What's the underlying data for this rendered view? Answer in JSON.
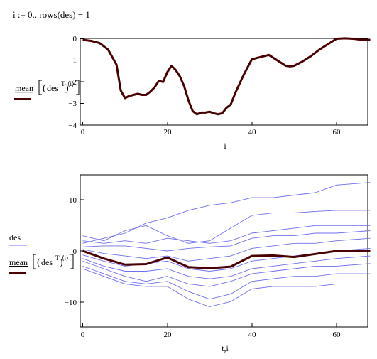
{
  "definition": {
    "text": "i := 0.. rows(des) − 1"
  },
  "chart_data": [
    {
      "type": "line",
      "title": "",
      "xlabel": "i",
      "ylabel": {
        "func": "mean",
        "arg": "des",
        "sup": "T",
        "sub": "⟨i⟩"
      },
      "xlim": [
        0,
        68
      ],
      "ylim": [
        -4,
        0
      ],
      "xticks": [
        "0",
        "20",
        "40",
        "60"
      ],
      "yticks": [
        "0",
        "−1",
        "−2",
        "−3",
        "−4"
      ],
      "grid": false,
      "series": [
        {
          "color": "#4a0000",
          "x": [
            0,
            2,
            4,
            6,
            8,
            9,
            10,
            11,
            12,
            13,
            14,
            15,
            16,
            17,
            18,
            19,
            20,
            21,
            22,
            23,
            24,
            25,
            26,
            27,
            28,
            29,
            30,
            31,
            32,
            33,
            34,
            35,
            36,
            38,
            40,
            42,
            44,
            46,
            48,
            49,
            50,
            52,
            54,
            56,
            58,
            60,
            62,
            64,
            66,
            68
          ],
          "y": [
            -0.05,
            -0.1,
            -0.2,
            -0.5,
            -1.2,
            -2.4,
            -2.75,
            -2.65,
            -2.6,
            -2.55,
            -2.6,
            -2.6,
            -2.45,
            -2.25,
            -1.95,
            -2.0,
            -1.55,
            -1.25,
            -1.45,
            -1.75,
            -2.2,
            -2.85,
            -3.35,
            -3.5,
            -3.42,
            -3.42,
            -3.38,
            -3.45,
            -3.5,
            -3.45,
            -3.2,
            -3.05,
            -2.55,
            -1.7,
            -0.95,
            -0.85,
            -0.75,
            -1.0,
            -1.25,
            -1.28,
            -1.25,
            -1.05,
            -0.8,
            -0.5,
            -0.25,
            0.0,
            0.02,
            0.0,
            -0.05,
            -0.05
          ]
        }
      ]
    },
    {
      "type": "line",
      "title": "",
      "xlabel": "t,i",
      "ylabel": {
        "top": "des",
        "func": "mean",
        "arg": "des",
        "sup": "T",
        "sub": "⟨i⟩"
      },
      "xlim": [
        0,
        68
      ],
      "ylim": [
        -15,
        15
      ],
      "xticks": [
        "0",
        "20",
        "40",
        "60"
      ],
      "yticks": [
        "10",
        "0",
        "−10"
      ],
      "ytick_values": [
        10,
        0,
        -10
      ],
      "grid": false,
      "x": [
        0,
        5,
        10,
        15,
        20,
        25,
        30,
        35,
        40,
        45,
        50,
        55,
        60,
        68
      ],
      "series": [
        {
          "color": "#6e6ef0",
          "y": [
            1.5,
            2.5,
            3.5,
            5.5,
            6.5,
            8.0,
            9.0,
            9.5,
            10.5,
            10.5,
            11.0,
            11.5,
            13.0,
            13.5
          ]
        },
        {
          "color": "#6e6ef0",
          "y": [
            3.0,
            2.0,
            4.0,
            5.0,
            3.0,
            1.5,
            2.0,
            4.5,
            7.0,
            7.5,
            7.5,
            7.8,
            8.0,
            8.0
          ]
        },
        {
          "color": "#6e6ef0",
          "y": [
            2.0,
            1.5,
            2.0,
            1.5,
            2.5,
            2.0,
            1.5,
            2.0,
            3.5,
            4.0,
            4.5,
            5.0,
            5.0,
            5.0
          ]
        },
        {
          "color": "#6e6ef0",
          "y": [
            0.8,
            1.0,
            1.0,
            0.5,
            0.0,
            0.5,
            0.8,
            1.0,
            2.5,
            3.0,
            3.0,
            3.5,
            3.5,
            4.0
          ]
        },
        {
          "color": "#6e6ef0",
          "y": [
            0.3,
            -0.5,
            -1.0,
            -1.5,
            -1.0,
            -2.0,
            -1.5,
            -1.0,
            0.5,
            1.0,
            1.5,
            1.5,
            2.0,
            2.5
          ]
        },
        {
          "color": "#6e6ef0",
          "y": [
            -0.8,
            -2.0,
            -3.0,
            -2.5,
            -2.0,
            -3.5,
            -4.0,
            -3.5,
            -2.0,
            -1.5,
            -1.0,
            -0.5,
            0.0,
            0.5
          ]
        },
        {
          "color": "#6e6ef0",
          "y": [
            -1.5,
            -3.0,
            -4.0,
            -4.0,
            -3.5,
            -5.0,
            -5.5,
            -5.0,
            -3.5,
            -3.0,
            -2.5,
            -2.0,
            -1.5,
            -1.0
          ]
        },
        {
          "color": "#6e6ef0",
          "y": [
            -2.0,
            -3.5,
            -5.0,
            -6.0,
            -5.0,
            -6.5,
            -7.0,
            -6.0,
            -4.5,
            -4.0,
            -3.5,
            -3.0,
            -3.0,
            -2.5
          ]
        },
        {
          "color": "#6e6ef0",
          "y": [
            -3.0,
            -4.5,
            -6.0,
            -6.5,
            -6.0,
            -8.0,
            -9.5,
            -8.5,
            -6.0,
            -5.5,
            -5.0,
            -5.0,
            -4.5,
            -4.5
          ]
        },
        {
          "color": "#6e6ef0",
          "y": [
            -3.5,
            -5.0,
            -6.5,
            -7.0,
            -7.0,
            -9.5,
            -11.0,
            -10.0,
            -7.5,
            -7.0,
            -7.0,
            -7.0,
            -6.5,
            -6.5
          ]
        },
        {
          "color": "#4a0000",
          "y": [
            0.0,
            -1.5,
            -2.7,
            -2.6,
            -1.3,
            -3.2,
            -3.4,
            -3.1,
            -1.0,
            -0.9,
            -1.2,
            -0.6,
            0.0,
            0.0
          ]
        }
      ]
    }
  ]
}
